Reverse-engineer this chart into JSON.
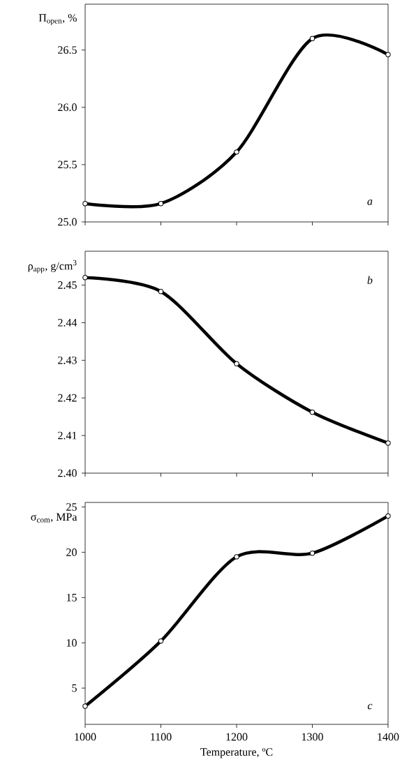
{
  "chart_data": [
    {
      "type": "line",
      "x": [
        1000,
        1100,
        1200,
        1300,
        1400
      ],
      "values": [
        25.16,
        25.16,
        25.61,
        26.6,
        26.46
      ],
      "color": "#000000",
      "marker": "circle",
      "ylabel": "Π$_{open}$, %",
      "xlim": [
        1000,
        1400
      ],
      "xticks": [
        1000,
        1100,
        1200,
        1300,
        1400
      ],
      "ylim": [
        25.0,
        26.9
      ],
      "yticks": [
        {
          "value": 25.0,
          "label": "25.0"
        },
        {
          "value": 25.5,
          "label": "25.5"
        },
        {
          "value": 26.0,
          "label": "26.0"
        },
        {
          "value": 26.5,
          "label": "26.5"
        }
      ],
      "tick_labels": "y",
      "annotations": [
        "a"
      ]
    },
    {
      "type": "line",
      "x": [
        1000,
        1100,
        1200,
        1300,
        1400
      ],
      "values": [
        2.452,
        2.4483,
        2.4291,
        2.4162,
        2.408
      ],
      "color": "#000000",
      "marker": "circle",
      "ylabel": "ρ$_{app}$, g/cm$^{3}$",
      "xlim": [
        1000,
        1400
      ],
      "xticks": [
        1000,
        1100,
        1200,
        1300,
        1400
      ],
      "ylim": [
        2.4,
        2.459
      ],
      "yticks": [
        {
          "value": 2.4,
          "label": "2.40"
        },
        2.41,
        2.42,
        2.43,
        2.44,
        2.45
      ],
      "tick_labels": "y",
      "annotations": [
        "b"
      ]
    },
    {
      "type": "line",
      "x": [
        1000,
        1100,
        1200,
        1300,
        1400
      ],
      "values": [
        3.0,
        10.2,
        19.5,
        19.9,
        24.0
      ],
      "color": "#000000",
      "marker": "circle",
      "ylabel": "σ$_{com}$, MPa",
      "xlabel": "Temperature, ºC",
      "xlim": [
        1000,
        1400
      ],
      "xticks": [
        1000,
        1100,
        1200,
        1300,
        1400
      ],
      "ylim": [
        1,
        25.5
      ],
      "yticks": [
        5,
        10,
        15,
        20,
        25
      ],
      "annotations": [
        "c"
      ]
    }
  ]
}
